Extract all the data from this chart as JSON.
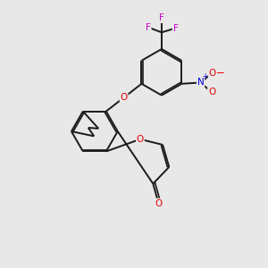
{
  "background_color": "#e8e8e8",
  "bond_color": "#1a1a1a",
  "atom_colors": {
    "O": "#e60000",
    "F": "#cc00cc",
    "N": "#0000dd",
    "C": "#1a1a1a"
  },
  "figsize": [
    3.0,
    3.0
  ],
  "dpi": 100,
  "lw_single": 1.4,
  "lw_double": 1.2,
  "double_sep": 0.055,
  "font_size": 7.5
}
